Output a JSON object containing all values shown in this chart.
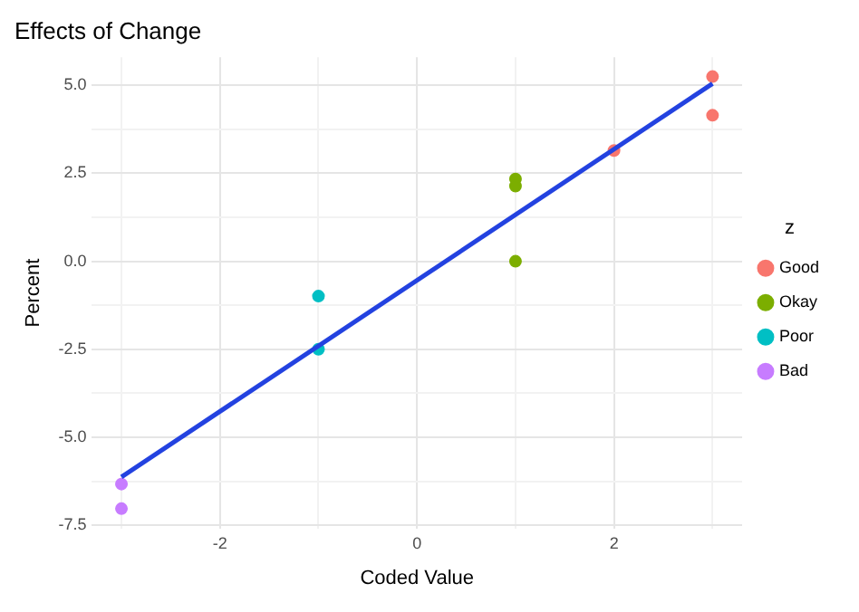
{
  "chart_data": {
    "type": "scatter",
    "title": "Effects of Change",
    "xlabel": "Coded Value",
    "ylabel": "Percent",
    "legend_title": "z",
    "legend": "right",
    "grid": true,
    "marker": "circle",
    "xlim": [
      -3.3,
      3.3
    ],
    "ylim": [
      -7.6,
      5.8
    ],
    "xticks": [
      {
        "value": -3,
        "label": null
      },
      -2,
      {
        "value": -1,
        "label": null
      },
      0,
      {
        "value": 1,
        "label": null
      },
      2,
      {
        "value": 3,
        "label": null
      }
    ],
    "yticks": [
      -7.5,
      {
        "value": -6.25,
        "label": null
      },
      {
        "value": -5,
        "label": "-5.0"
      },
      {
        "value": -3.75,
        "label": null
      },
      -2.5,
      {
        "value": -1.25,
        "label": null
      },
      {
        "value": 0,
        "label": "0.0"
      },
      {
        "value": 1.25,
        "label": null
      },
      2.5,
      {
        "value": 3.75,
        "label": null
      },
      {
        "value": 5,
        "label": "5.0"
      }
    ],
    "series": [
      {
        "name": "Good",
        "color": "#f8766d",
        "x": [
          3,
          3,
          2
        ],
        "values": [
          5.25,
          4.15,
          3.15
        ]
      },
      {
        "name": "Okay",
        "color": "#7cae00",
        "x": [
          1,
          1,
          1
        ],
        "values": [
          2.34,
          2.14,
          0.0
        ]
      },
      {
        "name": "Poor",
        "color": "#00bfc4",
        "x": [
          -1,
          -1
        ],
        "values": [
          -0.99,
          -2.5
        ]
      },
      {
        "name": "Bad",
        "color": "#c77cff",
        "x": [
          -3,
          -3
        ],
        "values": [
          -6.33,
          -7.03
        ]
      },
      {
        "type": "line",
        "color": "#2342e0",
        "x": [
          -3,
          3
        ],
        "values": [
          -6.13,
          5.05
        ],
        "marker": "none"
      }
    ]
  }
}
